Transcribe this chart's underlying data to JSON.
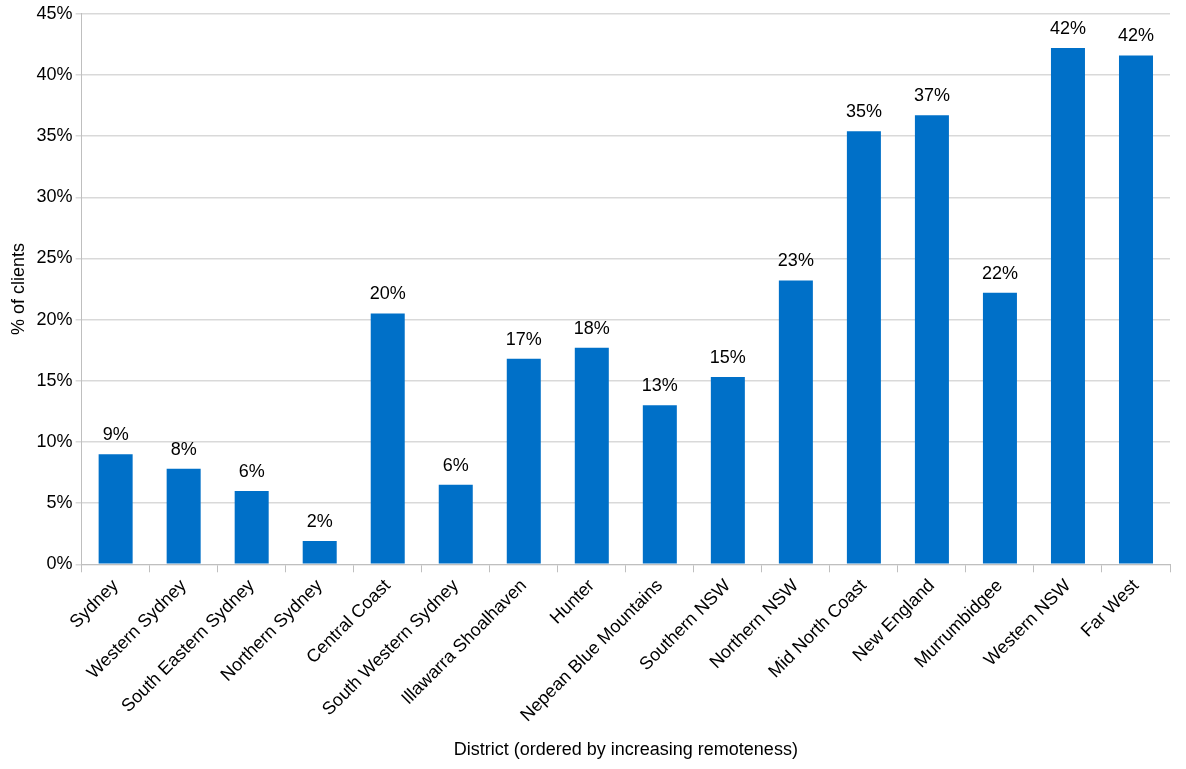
{
  "chart_data": {
    "type": "bar",
    "xlabel": "District (ordered by increasing remoteness)",
    "ylabel": "% of clients",
    "categories": [
      "Sydney",
      "Western Sydney",
      "South Eastern Sydney",
      "Northern Sydney",
      "Central Coast",
      "South Western Sydney",
      "Illawarra Shoalhaven",
      "Hunter",
      "Nepean Blue Mountains",
      "Southern NSW",
      "Northern NSW",
      "Mid North Coast",
      "New England",
      "Murrumbidgee",
      "Western NSW",
      "Far West"
    ],
    "values": [
      9.0,
      7.8,
      6.0,
      1.9,
      20.5,
      6.5,
      16.8,
      17.7,
      13.0,
      15.3,
      23.2,
      35.4,
      36.7,
      22.2,
      42.2,
      41.6
    ],
    "value_labels": [
      "9%",
      "8%",
      "6%",
      "2%",
      "20%",
      "6%",
      "17%",
      "18%",
      "13%",
      "15%",
      "23%",
      "35%",
      "37%",
      "22%",
      "42%",
      "42%"
    ],
    "color": "#0070c8",
    "ylim": [
      0,
      45
    ],
    "yticks": [
      {
        "value": 0,
        "label": "0%"
      },
      {
        "value": 5,
        "label": "5%"
      },
      {
        "value": 10,
        "label": "10%"
      },
      {
        "value": 15,
        "label": "15%"
      },
      {
        "value": 20,
        "label": "20%"
      },
      {
        "value": 25,
        "label": "25%"
      },
      {
        "value": 30,
        "label": "30%"
      },
      {
        "value": 35,
        "label": "35%"
      },
      {
        "value": 40,
        "label": "40%"
      },
      {
        "value": 45,
        "label": "45%"
      }
    ],
    "grid": "y",
    "legend": false
  }
}
